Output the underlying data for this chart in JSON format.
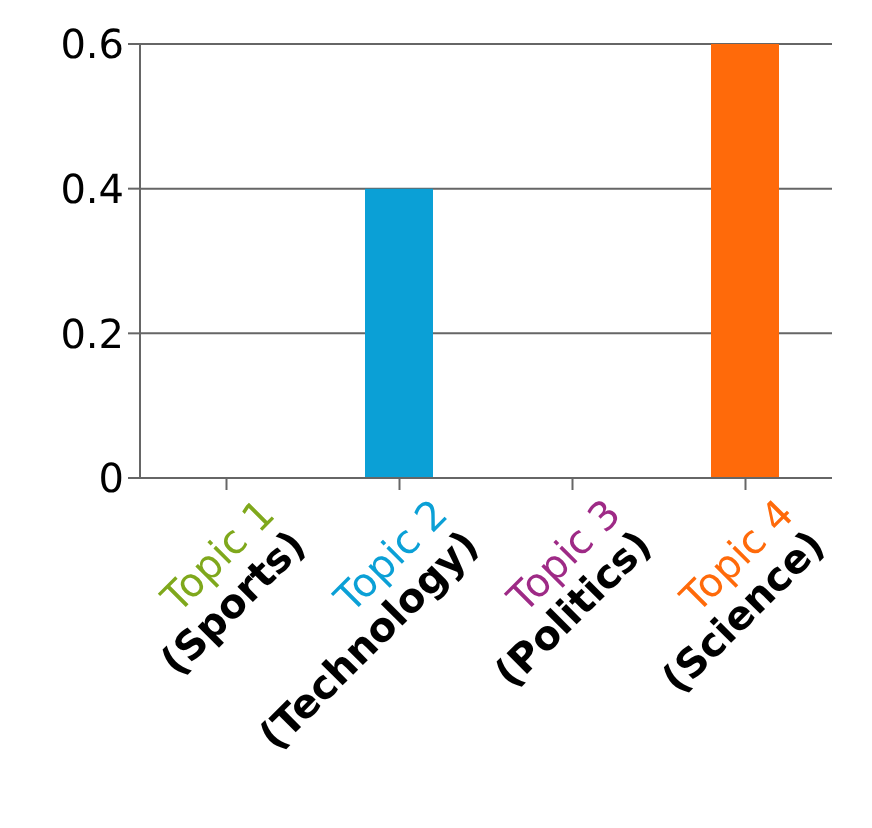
{
  "chart_data": {
    "type": "bar",
    "categories": [
      "Topic 1 (Sports)",
      "Topic 2 (Technology)",
      "Topic 3 (Politics)",
      "Topic 4 (Science)"
    ],
    "values": [
      0,
      0.4,
      0,
      0.6
    ],
    "colors": [
      "#7fa81c",
      "#0ba0d6",
      "#9e2a86",
      "#ff6a0a"
    ],
    "ylim": [
      0,
      0.6
    ],
    "yticks": [
      0,
      0.2,
      0.4,
      0.6
    ],
    "grid": "y"
  }
}
